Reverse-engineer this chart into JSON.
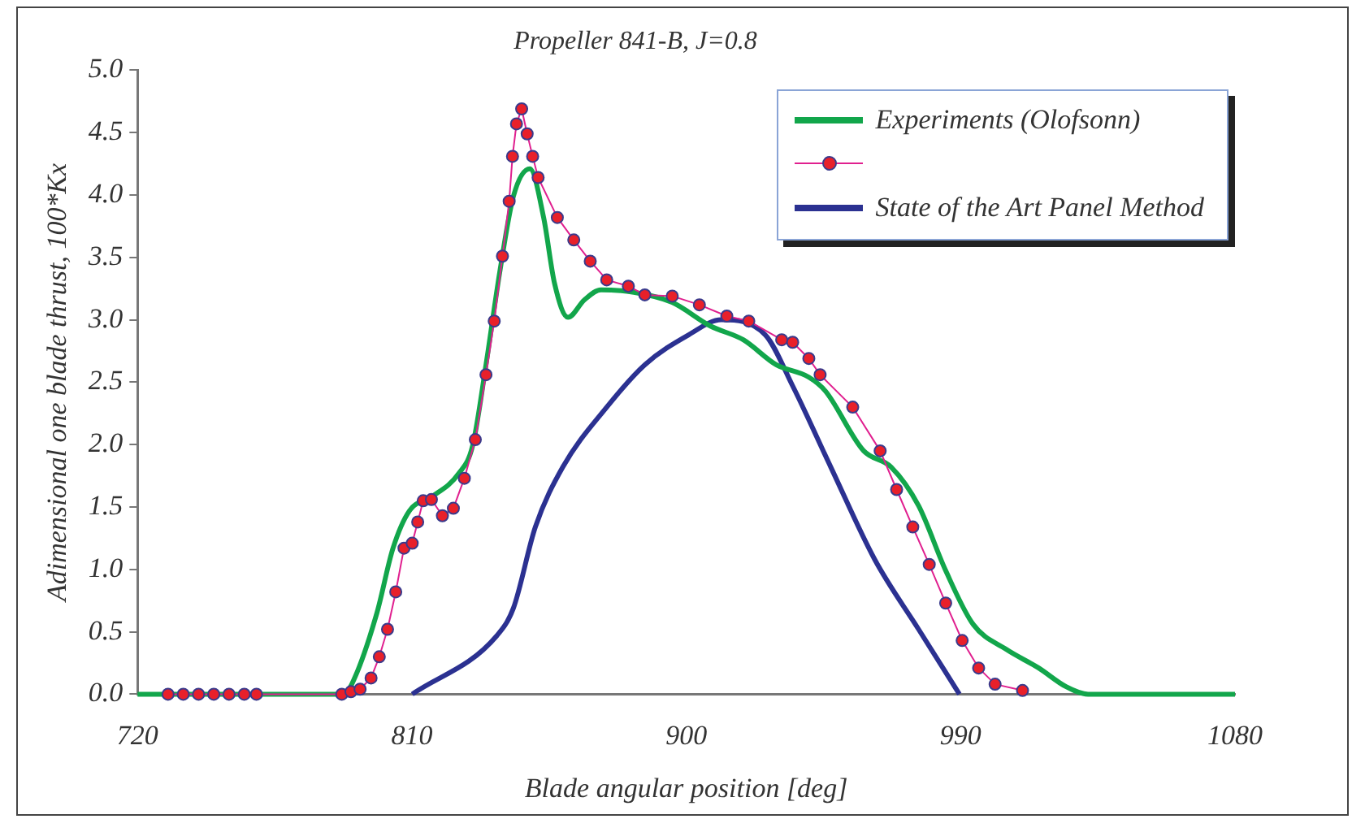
{
  "chart_data": {
    "type": "line",
    "title": "Propeller 841-B, J=0.8",
    "xlabel": "Blade angular position [deg]",
    "ylabel": "Adimensional one blade thrust, 100*Kx",
    "xlim": [
      720,
      1080
    ],
    "xticks": [
      720,
      810,
      900,
      990,
      1080
    ],
    "ylim": [
      0,
      5
    ],
    "yticks": [
      {
        "value": 0,
        "label": "0.0"
      },
      0.5,
      {
        "value": 1,
        "label": "1.0"
      },
      1.5,
      {
        "value": 2,
        "label": "2.0"
      },
      2.5,
      {
        "value": 3,
        "label": "3.0"
      },
      3.5,
      {
        "value": 4,
        "label": "4.0"
      },
      4.5,
      {
        "value": 5,
        "label": "5.0"
      }
    ],
    "grid": false,
    "legend": "top right",
    "line_style": "solid",
    "series": [
      {
        "name": "Experiments (Olofsonn)",
        "color": "#12a64b",
        "marker": "none",
        "x": [
          720,
          760,
          784,
          787.7,
          791.2,
          798.5,
          803.8,
          809.2,
          816.4,
          825.4,
          829.9,
          834.3,
          838.8,
          843.3,
          848.7,
          853.2,
          856.8,
          861.2,
          866.6,
          872,
          882.8,
          895.3,
          907.9,
          918.7,
          929.5,
          940.2,
          945.6,
          958.2,
          967.2,
          976.2,
          985.1,
          994.1,
          1004.9,
          1015.6,
          1024.6,
          1031.8,
          1042.6,
          1080
        ],
        "values": [
          0,
          0,
          0,
          0,
          0.13,
          0.65,
          1.17,
          1.47,
          1.58,
          1.77,
          1.99,
          2.64,
          3.38,
          3.99,
          4.21,
          3.82,
          3.29,
          3.02,
          3.16,
          3.24,
          3.22,
          3.14,
          2.95,
          2.84,
          2.64,
          2.54,
          2.43,
          1.95,
          1.82,
          1.51,
          0.99,
          0.56,
          0.36,
          0.21,
          0.06,
          0,
          0,
          0
        ]
      },
      {
        "color": "#e8202a",
        "marker": "circle",
        "x": [
          730,
          735,
          740,
          745,
          750,
          755,
          759,
          787,
          790,
          793,
          796.6,
          799.3,
          802,
          804.7,
          807.4,
          810.1,
          811.9,
          813.7,
          816.4,
          820,
          823.6,
          827.2,
          830.8,
          834.3,
          837,
          839.7,
          841.9,
          843,
          844.3,
          846,
          847.8,
          849.6,
          851.4,
          857.7,
          863.1,
          868.5,
          873.9,
          881,
          886.4,
          895.4,
          904.3,
          913.3,
          920.5,
          931.3,
          934.9,
          940.2,
          943.9,
          954.6,
          963.6,
          969,
          974.3,
          979.7,
          985.1,
          990.5,
          995.9,
          1001.3,
          1010.3
        ],
        "values": [
          0,
          0,
          0,
          0,
          0,
          0,
          0,
          0,
          0.02,
          0.04,
          0.13,
          0.3,
          0.52,
          0.82,
          1.17,
          1.21,
          1.38,
          1.55,
          1.56,
          1.43,
          1.49,
          1.73,
          2.04,
          2.56,
          2.99,
          3.51,
          3.95,
          4.31,
          4.57,
          4.69,
          4.49,
          4.31,
          4.14,
          3.82,
          3.64,
          3.47,
          3.32,
          3.27,
          3.2,
          3.19,
          3.12,
          3.03,
          2.99,
          2.84,
          2.82,
          2.69,
          2.56,
          2.3,
          1.95,
          1.64,
          1.34,
          1.04,
          0.73,
          0.43,
          0.21,
          0.08,
          0.03
        ]
      },
      {
        "name": "State of the Art Panel Method",
        "color": "#2b3191",
        "marker": "none",
        "x": [
          810.1,
          837.9,
          843.3,
          850.5,
          859.5,
          873.9,
          886.4,
          900.8,
          911.5,
          925.9,
          934.9,
          947.4,
          961.8,
          976.2,
          989.6
        ],
        "values": [
          0,
          0.47,
          0.69,
          1.34,
          1.82,
          2.3,
          2.64,
          2.88,
          3,
          2.88,
          2.47,
          1.82,
          1.08,
          0.52,
          0
        ]
      }
    ]
  }
}
